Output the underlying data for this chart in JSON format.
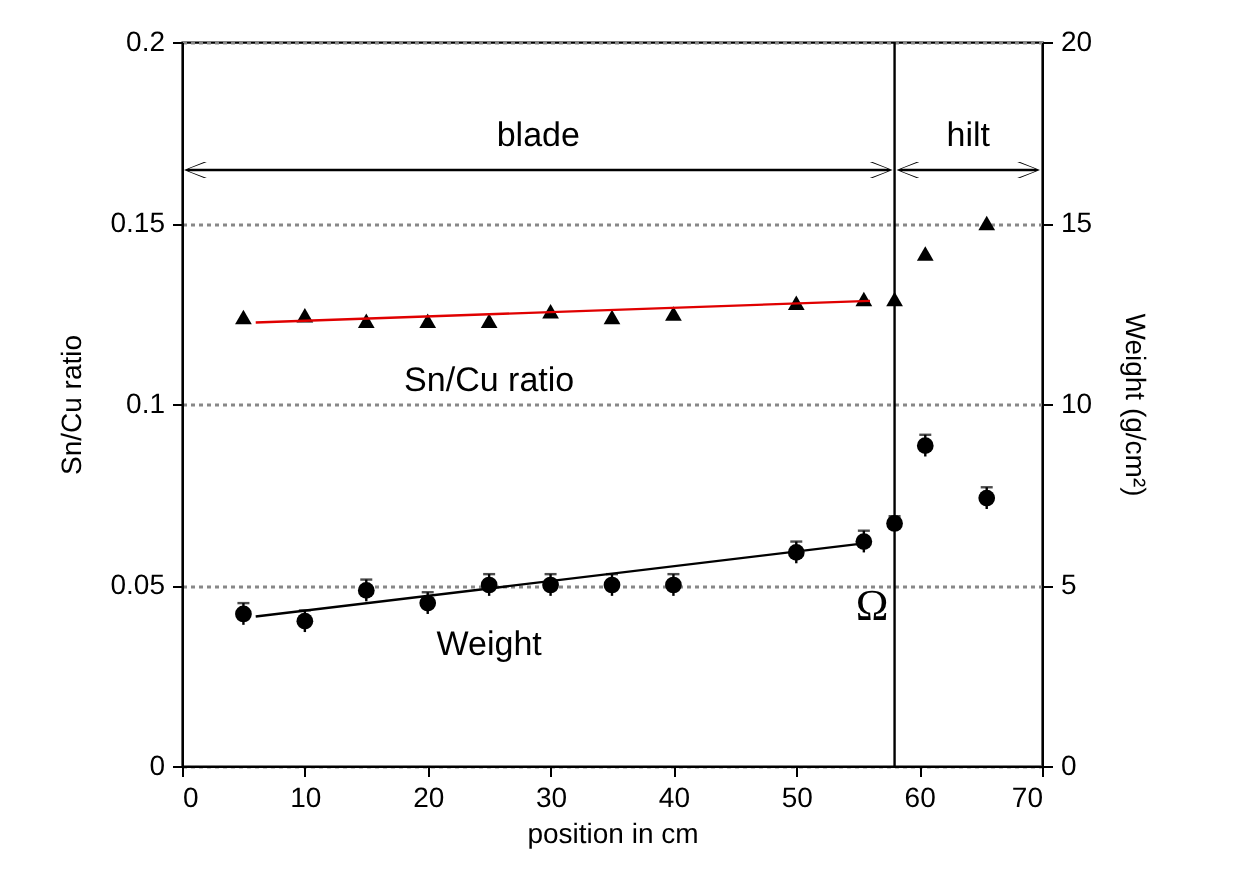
{
  "chart_data": {
    "type": "scatter",
    "xlabel": "position in cm",
    "ylabel": "Sn/Cu ratio",
    "y2label": "Weight (g/cm²)",
    "xlim": [
      0,
      70
    ],
    "xticks": [
      0,
      10,
      20,
      30,
      40,
      50,
      60,
      70
    ],
    "ylim": [
      0,
      0.2
    ],
    "yticks": [
      0,
      0.05,
      0.1,
      0.15,
      0.2
    ],
    "y2lim": [
      0,
      20
    ],
    "y2ticks": [
      0,
      5,
      10,
      15,
      20
    ],
    "grid": "y",
    "series": [
      {
        "name": "Sn/Cu ratio",
        "marker": "triangle",
        "color": "#000000",
        "x": [
          5,
          10,
          15,
          20,
          25,
          30,
          35,
          40,
          50,
          55.5,
          58,
          60.5,
          65.5
        ],
        "values": [
          0.124,
          0.1245,
          0.123,
          0.123,
          0.123,
          0.1256,
          0.124,
          0.125,
          0.128,
          0.129,
          0.129,
          0.1416,
          0.15
        ]
      },
      {
        "name": "Weight",
        "marker": "circle",
        "axis": "y2",
        "color": "#000000",
        "x": [
          5,
          10,
          15,
          20,
          25,
          30,
          35,
          40,
          50,
          55.5,
          58,
          60.5,
          65.5
        ],
        "values": [
          4.2,
          4.0,
          4.85,
          4.5,
          5.0,
          5.0,
          5.0,
          5.0,
          5.9,
          6.2,
          6.7,
          8.85,
          7.4
        ],
        "errors": [
          0.3,
          0.3,
          0.3,
          0.3,
          0.3,
          0.3,
          0.3,
          0.3,
          0.3,
          0.3,
          0.2,
          0.3,
          0.3
        ]
      },
      {
        "type": "line",
        "color": "#e00000",
        "x": [
          6,
          56
        ],
        "values": [
          0.1225,
          0.1285
        ]
      },
      {
        "type": "line",
        "axis": "y2",
        "color": "#000000",
        "x": [
          6,
          56
        ],
        "values": [
          4.13,
          6.17
        ]
      }
    ],
    "ref_lines": [
      {
        "axis": "x",
        "value": 58,
        "label": "Ω",
        "color": "#000000"
      }
    ],
    "annotations": [
      "blade",
      "hilt"
    ]
  }
}
